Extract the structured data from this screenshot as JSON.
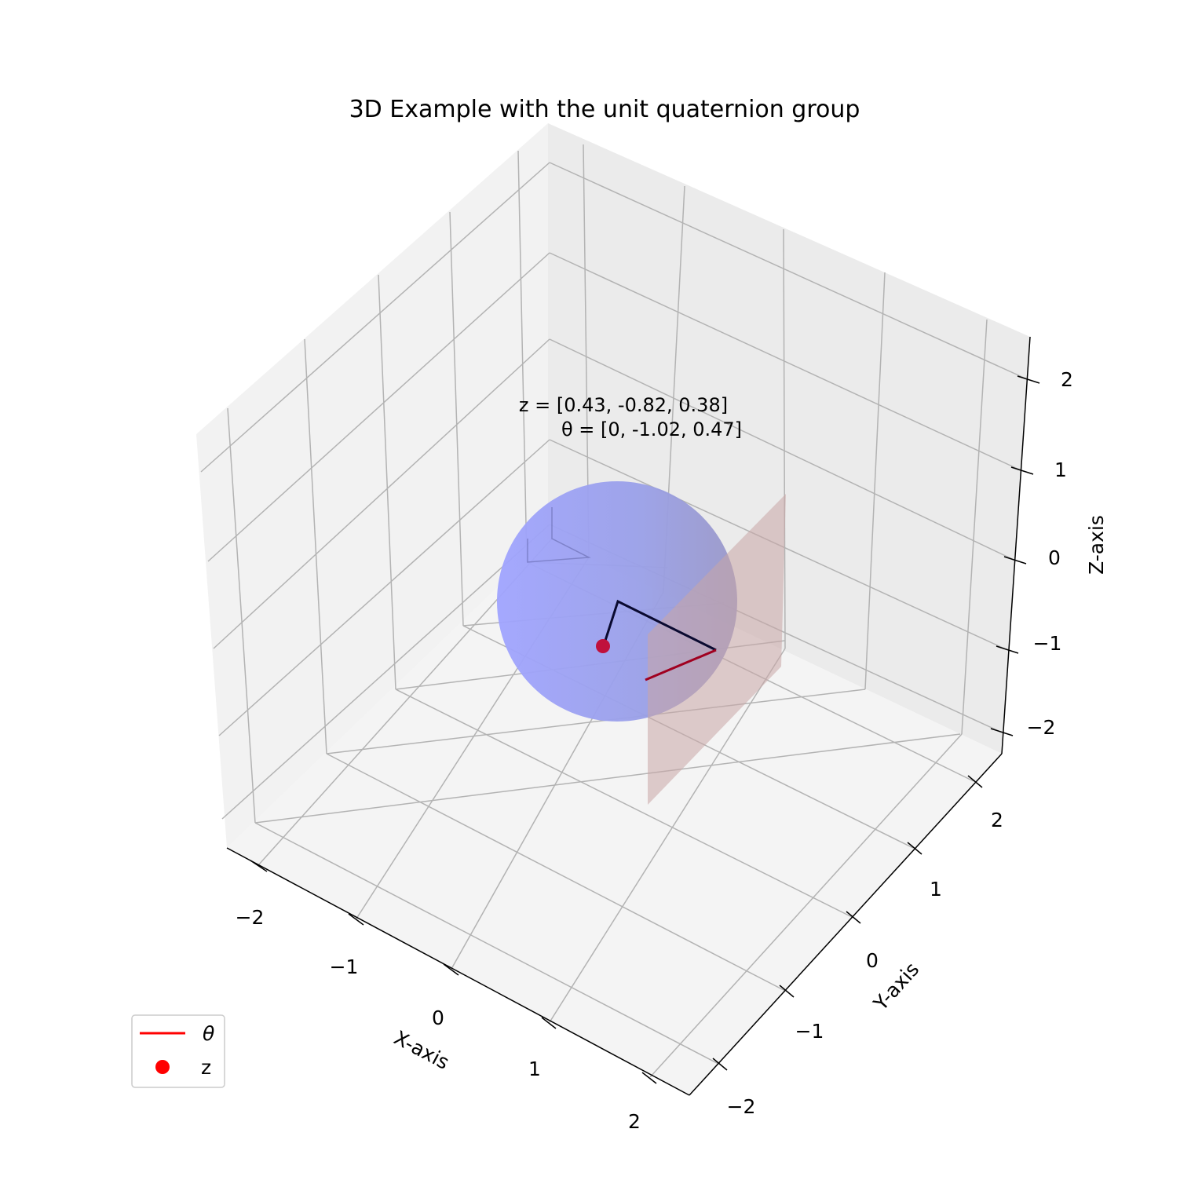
{
  "chart_data": {
    "type": "3d",
    "title": "3D Example with the unit quaternion group",
    "axes": {
      "x": {
        "label": "X-axis",
        "ticks": [
          "−2",
          "−1",
          "0",
          "1",
          "2"
        ],
        "range": [
          -2.3,
          2.3
        ]
      },
      "y": {
        "label": "Y-axis",
        "ticks": [
          "−2",
          "−1",
          "0",
          "1",
          "2"
        ],
        "range": [
          -2.3,
          2.3
        ]
      },
      "z": {
        "label": "Z-axis",
        "ticks": [
          "−2",
          "−1",
          "0",
          "1",
          "2"
        ],
        "range": [
          -2.3,
          2.3
        ]
      }
    },
    "grid": true,
    "annotation": {
      "line1": "z = [0.43, -0.82, 0.38]",
      "line2": "θ = [0, -1.02, 0.47]"
    },
    "sphere": {
      "center": [
        0,
        0,
        0
      ],
      "radius": 1,
      "color": "#8080ff"
    },
    "plane": {
      "color": "#c8a0a0"
    },
    "point_z": {
      "name": "z",
      "coords": [
        0.43,
        -0.82,
        0.38
      ],
      "color": "#ff0000"
    },
    "theta_vector": {
      "name": "θ",
      "coords": [
        0,
        -1.02,
        0.47
      ],
      "color": "#ff0000"
    },
    "legend": {
      "position": "lower-left",
      "entries": [
        {
          "label": "θ",
          "marker": "line",
          "color": "#ff0000"
        },
        {
          "label": "z",
          "marker": "dot",
          "color": "#ff0000"
        }
      ]
    }
  }
}
